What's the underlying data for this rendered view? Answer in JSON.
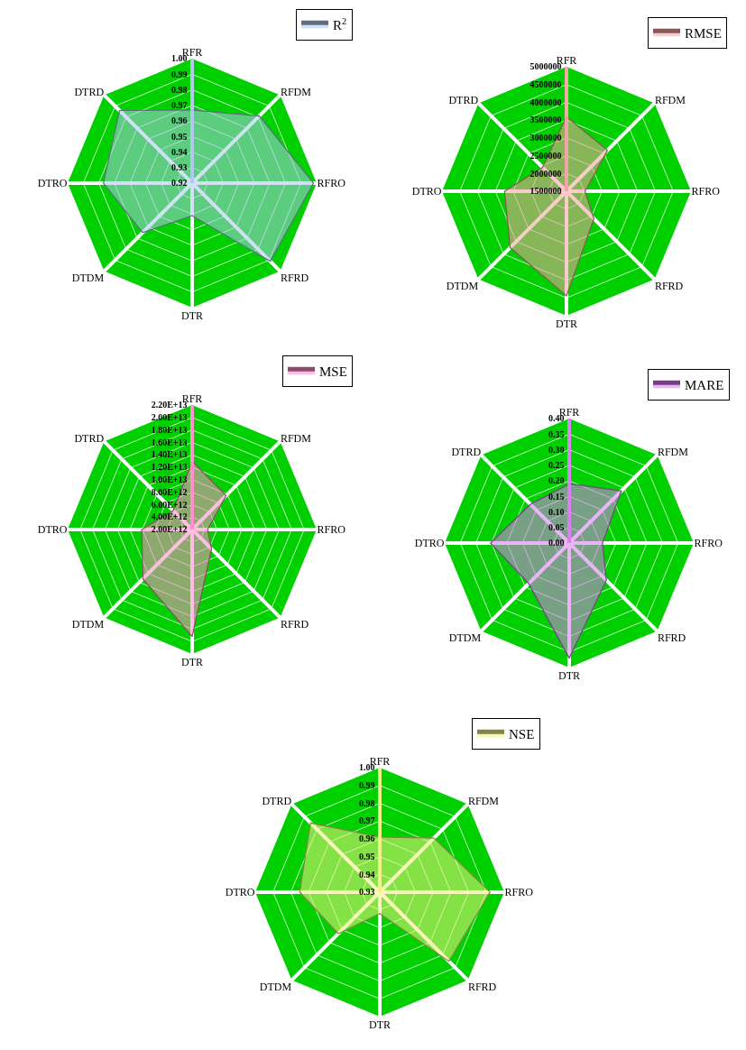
{
  "chart_data": [
    {
      "type": "radar",
      "categories": [
        "RFR",
        "RFDM",
        "RFRO",
        "RFRD",
        "DTR",
        "DTDM",
        "DTRO",
        "DTRD"
      ],
      "series": [
        {
          "name": "R$^{2}$",
          "color": "#a8c8e8",
          "values": [
            0.967,
            0.981,
            0.998,
            0.991,
            0.941,
            0.965,
            0.977,
            0.986
          ]
        }
      ],
      "ylim": [
        0.92,
        1.0
      ],
      "yticks": [
        {
          "value": 0.92,
          "label": "0.92"
        },
        {
          "value": 0.93,
          "label": "0.93"
        },
        {
          "value": 0.94,
          "label": "0.94"
        },
        {
          "value": 0.95,
          "label": "0.95"
        },
        {
          "value": 0.96,
          "label": "0.96"
        },
        {
          "value": 0.97,
          "label": "0.97"
        },
        {
          "value": 0.98,
          "label": "0.98"
        },
        {
          "value": 0.99,
          "label": "0.99"
        },
        {
          "value": 1.0,
          "label": "1.00"
        }
      ],
      "grid": true,
      "legend": "top right",
      "marker": "none"
    },
    {
      "type": "radar",
      "categories": [
        "RFR",
        "RFDM",
        "RFRO",
        "RFRD",
        "DTR",
        "DTDM",
        "DTRO",
        "DTRD"
      ],
      "series": [
        {
          "name": "RMSE",
          "color": "#f4a0a0",
          "values": [
            3590000,
            3130000,
            2020000,
            2590000,
            4440000,
            3740000,
            3240000,
            2450000
          ]
        }
      ],
      "ylim": [
        1500000,
        5000000
      ],
      "yticks": [
        1500000,
        2000000,
        2500000,
        3000000,
        3500000,
        4000000,
        4500000,
        5000000
      ],
      "grid": true,
      "legend": "top right",
      "marker": "none"
    },
    {
      "type": "radar",
      "categories": [
        "RFR",
        "RFDM",
        "RFRO",
        "RFRD",
        "DTR",
        "DTDM",
        "DTRO",
        "DTRD"
      ],
      "series": [
        {
          "name": "MSE",
          "color": "#ff88c8",
          "values": [
            12950000000000.0,
            9700000000000.0,
            4500000000000.0,
            6400000000000.0,
            19200000000000.0,
            13200000000000.0,
            10100000000000.0,
            6300000000000.0
          ]
        }
      ],
      "ylim": [
        2000000000000.0,
        22000000000000.0
      ],
      "yticks": [
        {
          "value": 2000000000000.0,
          "label": "2.00E+12"
        },
        {
          "value": 4000000000000.0,
          "label": "4.00E+12"
        },
        {
          "value": 6000000000000.0,
          "label": "6.00E+12"
        },
        {
          "value": 8000000000000.0,
          "label": "8.00E+12"
        },
        {
          "value": 10000000000000.0,
          "label": "1.00E+13"
        },
        {
          "value": 12000000000000.0,
          "label": "1.20E+13"
        },
        {
          "value": 14000000000000.0,
          "label": "1.40E+13"
        },
        {
          "value": 16000000000000.0,
          "label": "1.60E+13"
        },
        {
          "value": 18000000000000.0,
          "label": "1.80E+13"
        },
        {
          "value": 20000000000000.0,
          "label": "2.00E+13"
        },
        {
          "value": 22000000000000.0,
          "label": "2.20E+13"
        }
      ],
      "grid": true,
      "legend": "top right",
      "marker": "none"
    },
    {
      "type": "radar",
      "categories": [
        "RFR",
        "RFDM",
        "RFRO",
        "RFRD",
        "DTR",
        "DTDM",
        "DTRO",
        "DTRD"
      ],
      "series": [
        {
          "name": "MARE",
          "color": "#d878f0",
          "values": [
            0.19,
            0.237,
            0.107,
            0.169,
            0.37,
            0.184,
            0.253,
            0.176
          ]
        }
      ],
      "ylim": [
        0.0,
        0.4
      ],
      "yticks": [
        {
          "value": 0,
          "label": "0.00"
        },
        {
          "value": 0.05,
          "label": "0.05"
        },
        {
          "value": 0.1,
          "label": "0.10"
        },
        {
          "value": 0.15,
          "label": "0.15"
        },
        {
          "value": 0.2,
          "label": "0.20"
        },
        {
          "value": 0.25,
          "label": "0.25"
        },
        {
          "value": 0.3,
          "label": "0.30"
        },
        {
          "value": 0.35,
          "label": "0.35"
        },
        {
          "value": 0.4,
          "label": "0.40"
        }
      ],
      "grid": true,
      "legend": "top right",
      "marker": "none"
    },
    {
      "type": "radar",
      "categories": [
        "RFR",
        "RFDM",
        "RFRO",
        "RFRD",
        "DTR",
        "DTDM",
        "DTRO",
        "DTRD"
      ],
      "series": [
        {
          "name": "NSE",
          "color": "#f0f080",
          "values": [
            0.961,
            0.973,
            0.992,
            0.985,
            0.942,
            0.963,
            0.975,
            0.985
          ]
        }
      ],
      "ylim": [
        0.93,
        1.0
      ],
      "yticks": [
        {
          "value": 0.93,
          "label": "0.93"
        },
        {
          "value": 0.94,
          "label": "0.94"
        },
        {
          "value": 0.95,
          "label": "0.95"
        },
        {
          "value": 0.96,
          "label": "0.96"
        },
        {
          "value": 0.97,
          "label": "0.97"
        },
        {
          "value": 0.98,
          "label": "0.98"
        },
        {
          "value": 0.99,
          "label": "0.99"
        },
        {
          "value": 1.0,
          "label": "1.00"
        }
      ],
      "grid": true,
      "legend": "top right",
      "marker": "none"
    }
  ]
}
